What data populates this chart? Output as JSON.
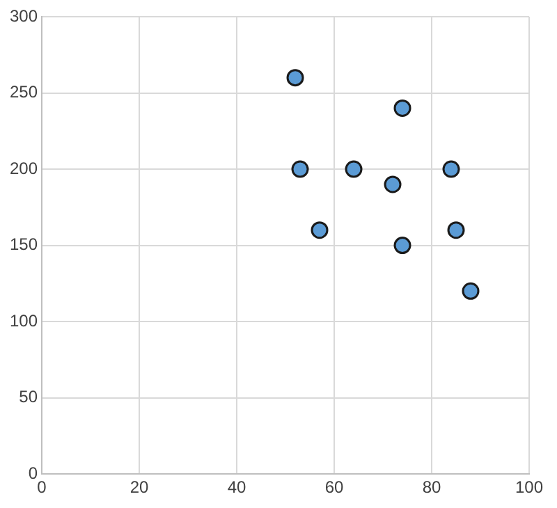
{
  "chart_data": {
    "type": "scatter",
    "x": [
      52,
      74,
      53,
      64,
      72,
      84,
      57,
      85,
      74,
      88
    ],
    "values": [
      260,
      240,
      200,
      200,
      190,
      200,
      160,
      160,
      150,
      120
    ],
    "color": "#5b9bd5",
    "marker": "circle",
    "grid": true,
    "legend": false,
    "xlim": [
      0,
      100
    ],
    "xticks": [
      0,
      20,
      40,
      60,
      80,
      100
    ],
    "ylim": [
      0,
      300
    ],
    "yticks": [
      0,
      50,
      100,
      150,
      200,
      250,
      300
    ]
  }
}
